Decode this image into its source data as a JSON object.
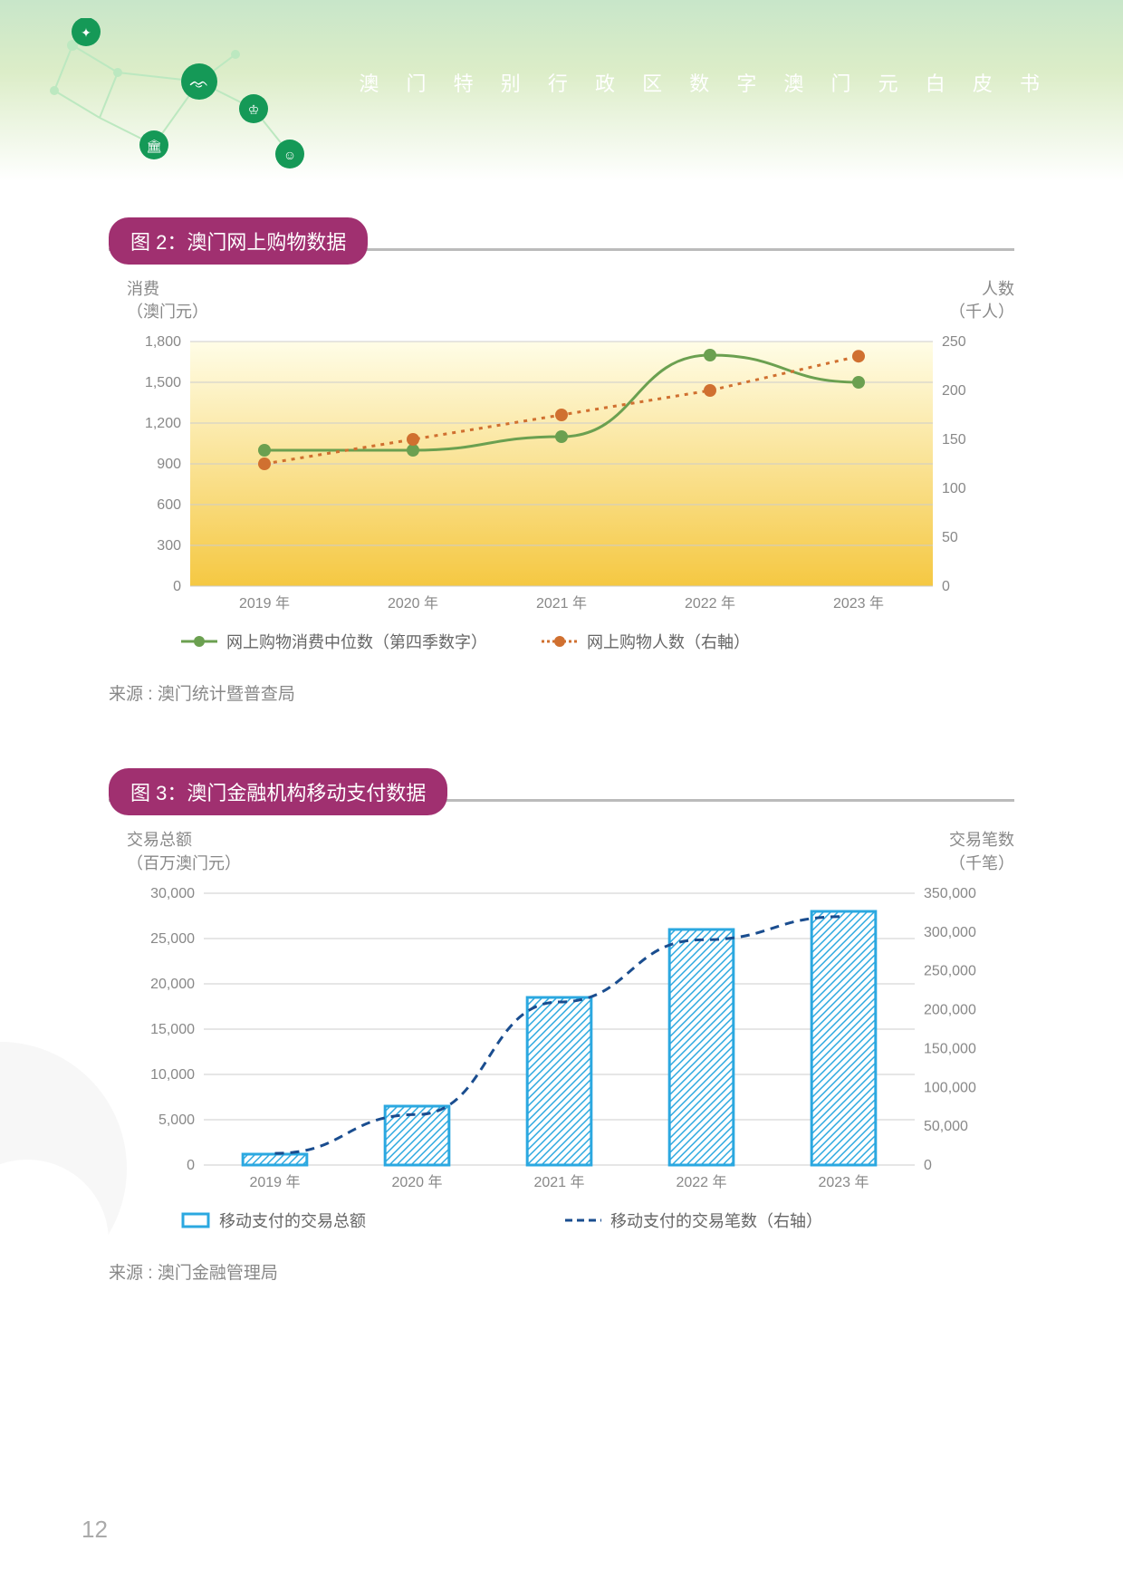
{
  "header": {
    "title": "澳 门 特 别 行 政 区 数 字 澳 门 元 白 皮 书"
  },
  "chart2": {
    "badge": "图 2：澳门网上购物数据",
    "left_axis_label_line1": "消费",
    "left_axis_label_line2": "（澳门元）",
    "right_axis_label_line1": "人数",
    "right_axis_label_line2": "（千人）",
    "type": "dual-axis-line",
    "categories": [
      "2019 年",
      "2020 年",
      "2021 年",
      "2022 年",
      "2023 年"
    ],
    "left_yticks": [
      "0",
      "300",
      "600",
      "900",
      "1,200",
      "1,500",
      "1,800"
    ],
    "left_ylim": [
      0,
      1800
    ],
    "right_yticks": [
      "0",
      "50",
      "100",
      "150",
      "200",
      "250"
    ],
    "right_ylim": [
      0,
      250
    ],
    "series1": {
      "name": "网上购物消费中位数（第四季数字）",
      "values": [
        1000,
        1000,
        1100,
        1700,
        1500
      ],
      "color": "#6ba050",
      "style": "solid-line-markers"
    },
    "series2": {
      "name": "网上购物人数（右軸）",
      "values": [
        125,
        150,
        175,
        200,
        235
      ],
      "color": "#d07030",
      "style": "dotted-line-markers"
    },
    "grid_color": "#cccccc",
    "gradient_top": "#fffde7",
    "gradient_bottom": "#f5c842",
    "source": "来源 : 澳门统计暨普查局"
  },
  "chart3": {
    "badge": "图 3：澳门金融机构移动支付数据",
    "left_axis_label_line1": "交易总额",
    "left_axis_label_line2": "（百万澳门元）",
    "right_axis_label_line1": "交易笔数",
    "right_axis_label_line2": "（千笔）",
    "type": "bar-line-dual",
    "categories": [
      "2019 年",
      "2020 年",
      "2021 年",
      "2022 年",
      "2023 年"
    ],
    "left_yticks": [
      "0",
      "5,000",
      "10,000",
      "15,000",
      "20,000",
      "25,000",
      "30,000"
    ],
    "left_ylim": [
      0,
      30000
    ],
    "right_yticks": [
      "0",
      "50,000",
      "100,000",
      "150,000",
      "200,000",
      "250,000",
      "300,000",
      "350,000"
    ],
    "right_ylim": [
      0,
      350000
    ],
    "bars": {
      "name": "移动支付的交易总额",
      "values": [
        1200,
        6500,
        18500,
        26000,
        28000
      ],
      "fill": "hatched",
      "stroke": "#2ba8e0",
      "hatch_color": "#2ba8e0"
    },
    "line": {
      "name": "移动支付的交易笔数（右轴）",
      "values": [
        15000,
        65000,
        210000,
        290000,
        320000
      ],
      "color": "#1a4d8f",
      "style": "dashed"
    },
    "grid_color": "#cccccc",
    "source": "来源 : 澳门金融管理局"
  },
  "page_number": "12",
  "network_icons": {
    "color_dark": "#159957",
    "color_light": "#a5d6a7",
    "line_color": "#bce8c0"
  }
}
